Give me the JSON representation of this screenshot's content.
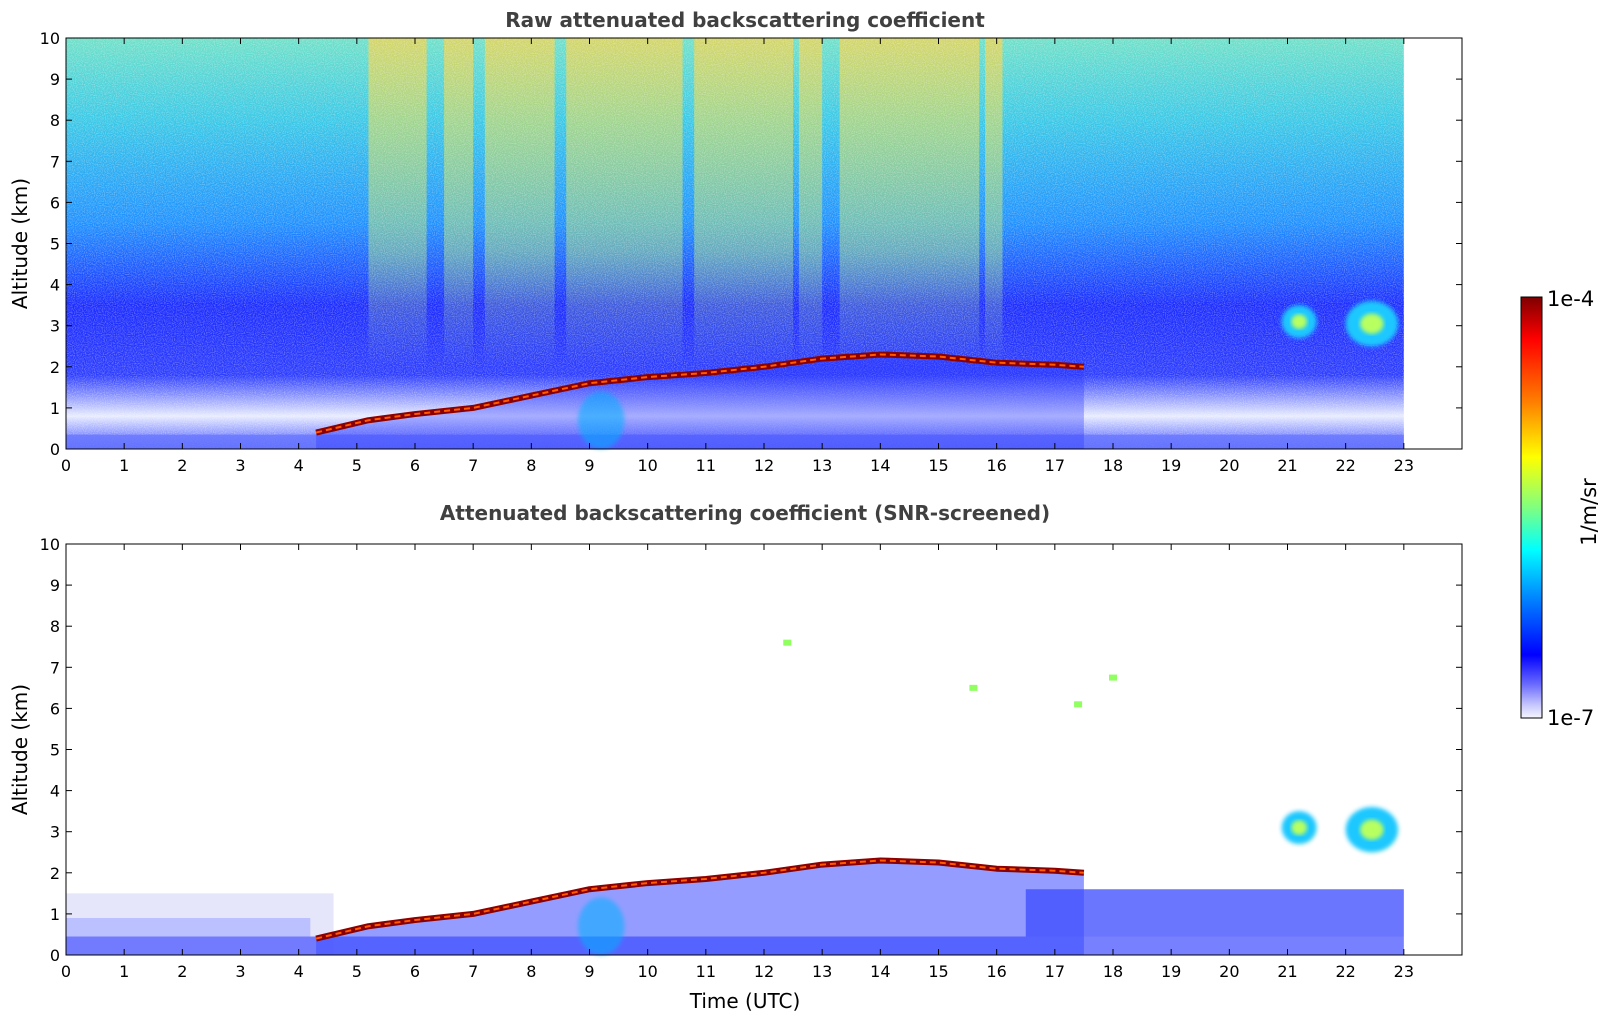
{
  "chart_data": [
    {
      "type": "heatmap",
      "title": "Raw attenuated backscattering coefficient",
      "xlabel": "",
      "ylabel": "Altitude (km)",
      "xlim": [
        0,
        24
      ],
      "ylim": [
        0,
        10
      ],
      "xticks": [
        "0",
        "1",
        "2",
        "3",
        "4",
        "5",
        "6",
        "7",
        "8",
        "9",
        "10",
        "11",
        "12",
        "13",
        "14",
        "15",
        "16",
        "17",
        "18",
        "19",
        "20",
        "21",
        "22",
        "23"
      ],
      "yticks": [
        "0",
        "1",
        "2",
        "3",
        "4",
        "5",
        "6",
        "7",
        "8",
        "9",
        "10"
      ],
      "data_end_hour": 23,
      "features": [
        {
          "kind": "boundary_layer_top",
          "points": [
            [
              4.3,
              0.4
            ],
            [
              5.2,
              0.7
            ],
            [
              6.0,
              0.85
            ],
            [
              7.0,
              1.0
            ],
            [
              8.0,
              1.3
            ],
            [
              9.0,
              1.6
            ],
            [
              10.0,
              1.75
            ],
            [
              11.0,
              1.85
            ],
            [
              12.0,
              2.0
            ],
            [
              13.0,
              2.2
            ],
            [
              14.0,
              2.3
            ],
            [
              15.0,
              2.25
            ],
            [
              16.0,
              2.1
            ],
            [
              17.0,
              2.05
            ],
            [
              17.5,
              2.0
            ]
          ]
        },
        {
          "kind": "cloud",
          "x": [
            20.9,
            21.5
          ],
          "y": [
            2.7,
            3.5
          ]
        },
        {
          "kind": "cloud",
          "x": [
            22.0,
            22.9
          ],
          "y": [
            2.5,
            3.6
          ]
        }
      ]
    },
    {
      "type": "heatmap",
      "title": "Attenuated backscattering coefficient (SNR-screened)",
      "xlabel": "Time (UTC)",
      "ylabel": "Altitude (km)",
      "xlim": [
        0,
        24
      ],
      "ylim": [
        0,
        10
      ],
      "xticks": [
        "0",
        "1",
        "2",
        "3",
        "4",
        "5",
        "6",
        "7",
        "8",
        "9",
        "10",
        "11",
        "12",
        "13",
        "14",
        "15",
        "16",
        "17",
        "18",
        "19",
        "20",
        "21",
        "22",
        "23"
      ],
      "yticks": [
        "0",
        "1",
        "2",
        "3",
        "4",
        "5",
        "6",
        "7",
        "8",
        "9",
        "10"
      ],
      "data_end_hour": 23,
      "features": [
        {
          "kind": "boundary_layer_top",
          "points": [
            [
              4.3,
              0.4
            ],
            [
              5.2,
              0.7
            ],
            [
              6.0,
              0.85
            ],
            [
              7.0,
              1.0
            ],
            [
              8.0,
              1.3
            ],
            [
              9.0,
              1.6
            ],
            [
              10.0,
              1.75
            ],
            [
              11.0,
              1.85
            ],
            [
              12.0,
              2.0
            ],
            [
              13.0,
              2.2
            ],
            [
              14.0,
              2.3
            ],
            [
              15.0,
              2.25
            ],
            [
              16.0,
              2.1
            ],
            [
              17.0,
              2.05
            ],
            [
              17.5,
              2.0
            ]
          ]
        },
        {
          "kind": "cloud",
          "x": [
            20.9,
            21.5
          ],
          "y": [
            2.7,
            3.5
          ]
        },
        {
          "kind": "cloud",
          "x": [
            22.0,
            22.9
          ],
          "y": [
            2.5,
            3.6
          ]
        },
        {
          "kind": "speckle",
          "x": 12.4,
          "y": 7.6
        },
        {
          "kind": "speckle",
          "x": 15.6,
          "y": 6.5
        },
        {
          "kind": "speckle",
          "x": 18.0,
          "y": 6.75
        },
        {
          "kind": "speckle",
          "x": 17.4,
          "y": 6.1
        }
      ]
    }
  ],
  "colorbar": {
    "label": "1/m/sr",
    "max_label": "1e-4",
    "min_label": "1e-7",
    "colors": [
      "#7f0000",
      "#ff0000",
      "#ff8000",
      "#ffff00",
      "#80ff80",
      "#00ffff",
      "#0080ff",
      "#0000ff",
      "#6a6aff",
      "#c8c8ff",
      "#f5f5ff"
    ]
  }
}
